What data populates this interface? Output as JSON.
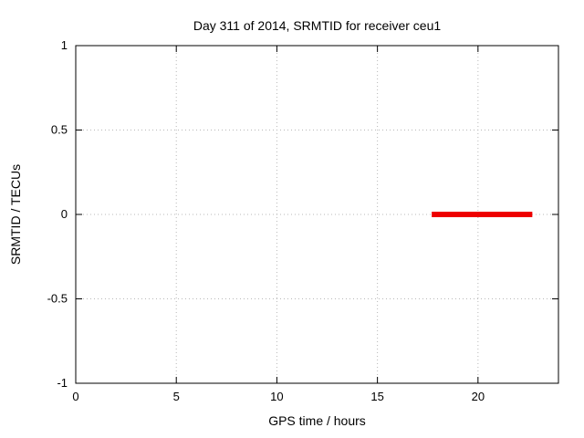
{
  "chart_data": {
    "type": "line",
    "title": "Day 311 of 2014, SRMTID for receiver ceu1",
    "xlabel": "GPS time / hours",
    "ylabel": "SRMTID / TECUs",
    "xlim": [
      0,
      24
    ],
    "ylim": [
      -1,
      1
    ],
    "xticks": [
      0,
      5,
      10,
      15,
      20
    ],
    "yticks": [
      -1,
      -0.5,
      0,
      0.5,
      1
    ],
    "grid": true,
    "legend_position": "none",
    "colors": {
      "border": "#000000",
      "grid": "#b8b8b8",
      "series": "#ee0000",
      "background": "#ffffff"
    },
    "series": [
      {
        "name": "SRMTID",
        "color": "#ee0000",
        "linewidth": 6,
        "points": [
          [
            17.7,
            0
          ],
          [
            22.7,
            0
          ]
        ]
      }
    ]
  }
}
